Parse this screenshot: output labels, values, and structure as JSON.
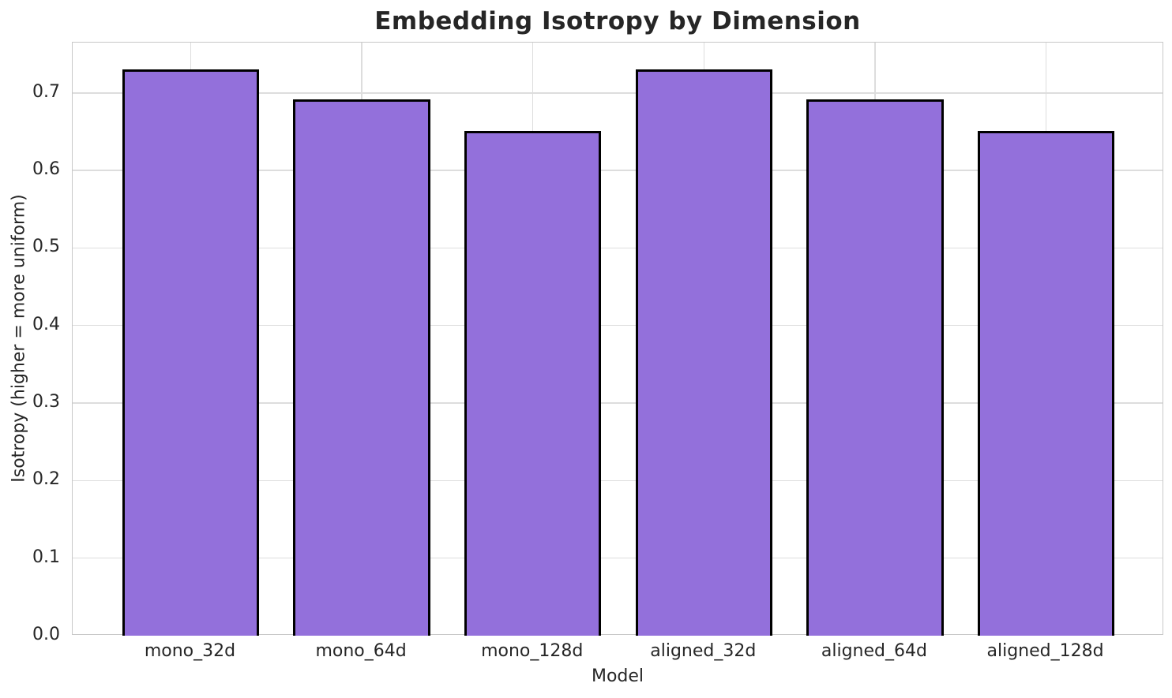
{
  "chart_data": {
    "type": "bar",
    "title": "Embedding Isotropy by Dimension",
    "xlabel": "Model",
    "ylabel": "Isotropy (higher = more uniform)",
    "categories": [
      "mono_32d",
      "mono_64d",
      "mono_128d",
      "aligned_32d",
      "aligned_64d",
      "aligned_128d"
    ],
    "values": [
      0.729,
      0.69,
      0.65,
      0.729,
      0.69,
      0.65
    ],
    "ylim": [
      0,
      0.765
    ],
    "yticks": [
      0.0,
      0.1,
      0.2,
      0.3,
      0.4,
      0.5,
      0.6,
      0.7
    ],
    "ytick_labels": [
      "0.0",
      "0.1",
      "0.2",
      "0.3",
      "0.4",
      "0.5",
      "0.6",
      "0.7"
    ],
    "grid": true,
    "legend": null,
    "bar_width_fraction": 0.8,
    "colors": {
      "bar_fill": "#9370DB",
      "bar_edge": "#000000",
      "grid": "#dddddd",
      "spine": "#c8c8c8",
      "text": "#262626",
      "background": "#ffffff"
    }
  }
}
